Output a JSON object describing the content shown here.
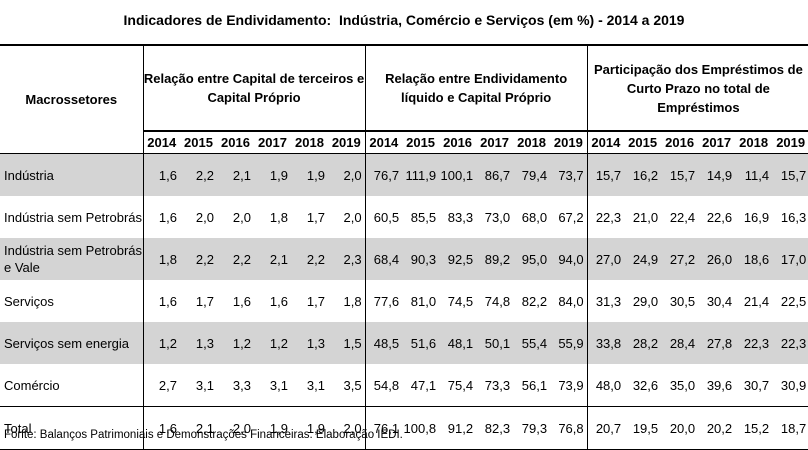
{
  "title": "Indicadores de Endividamento:  Indústria, Comércio e Serviços (em %) - 2014 a 2019",
  "headers": {
    "macro": "Macrossetores",
    "groups": [
      "Relação entre Capital de terceiros e Capital Próprio",
      "Relação entre Endividamento líquido e Capital Próprio",
      "Participação dos Empréstimos de Curto Prazo no total de Empréstimos"
    ],
    "years": [
      "2014",
      "2015",
      "2016",
      "2017",
      "2018",
      "2019"
    ]
  },
  "rows": [
    {
      "name": "Indústria",
      "shaded": true,
      "values": [
        "1,6",
        "2,2",
        "2,1",
        "1,9",
        "1,9",
        "2,0",
        "76,7",
        "111,9",
        "100,1",
        "86,7",
        "79,4",
        "73,7",
        "15,7",
        "16,2",
        "15,7",
        "14,9",
        "11,4",
        "15,7"
      ]
    },
    {
      "name": "Indústria sem Petrobrás",
      "shaded": false,
      "values": [
        "1,6",
        "2,0",
        "2,0",
        "1,8",
        "1,7",
        "2,0",
        "60,5",
        "85,5",
        "83,3",
        "73,0",
        "68,0",
        "67,2",
        "22,3",
        "21,0",
        "22,4",
        "22,6",
        "16,9",
        "16,3"
      ]
    },
    {
      "name": "Indústria sem Petrobrás e Vale",
      "shaded": true,
      "values": [
        "1,8",
        "2,2",
        "2,2",
        "2,1",
        "2,2",
        "2,3",
        "68,4",
        "90,3",
        "92,5",
        "89,2",
        "95,0",
        "94,0",
        "27,0",
        "24,9",
        "27,2",
        "26,0",
        "18,6",
        "17,0"
      ]
    },
    {
      "name": "Serviços",
      "shaded": false,
      "values": [
        "1,6",
        "1,7",
        "1,6",
        "1,6",
        "1,7",
        "1,8",
        "77,6",
        "81,0",
        "74,5",
        "74,8",
        "82,2",
        "84,0",
        "31,3",
        "29,0",
        "30,5",
        "30,4",
        "21,4",
        "22,5"
      ]
    },
    {
      "name": " Serviços sem energia",
      "shaded": true,
      "values": [
        "1,2",
        "1,3",
        "1,2",
        "1,2",
        "1,3",
        "1,5",
        "48,5",
        "51,6",
        "48,1",
        "50,1",
        "55,4",
        "55,9",
        "33,8",
        "28,2",
        "28,4",
        "27,8",
        "22,3",
        "22,3"
      ]
    },
    {
      "name": "Comércio",
      "shaded": false,
      "values": [
        "2,7",
        "3,1",
        "3,3",
        "3,1",
        "3,1",
        "3,5",
        "54,8",
        "47,1",
        "75,4",
        "73,3",
        "56,1",
        "73,9",
        "48,0",
        "32,6",
        "35,0",
        "39,6",
        "30,7",
        "30,9"
      ]
    },
    {
      "name": "Total",
      "shaded": false,
      "total": true,
      "values": [
        "1,6",
        "2,1",
        "2,0",
        "1,9",
        "1,9",
        "2,0",
        "76,1",
        "100,8",
        "91,2",
        "82,3",
        "79,3",
        "76,8",
        "20,7",
        "19,5",
        "20,0",
        "20,2",
        "15,2",
        "18,7"
      ]
    }
  ],
  "source": "Fonte: Balanços Patrimoniais e Demonstrações Financeiras. Elaboração IEDI."
}
